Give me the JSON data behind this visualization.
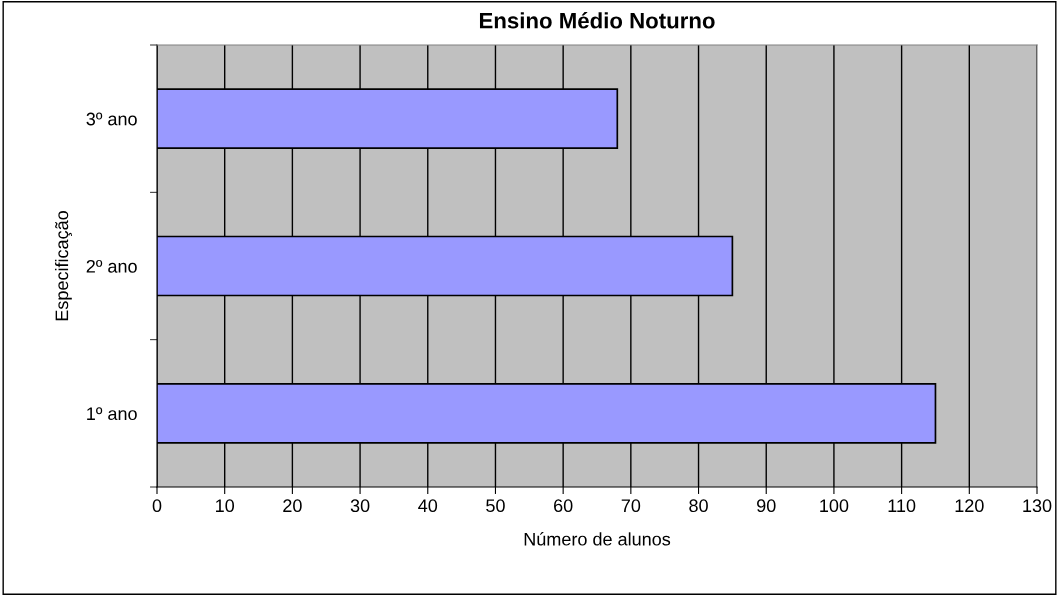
{
  "chart_data": {
    "type": "bar",
    "orientation": "horizontal",
    "title": "Ensino Médio Noturno",
    "xlabel": "Número de alunos",
    "ylabel": "Especificação",
    "categories": [
      "3º ano",
      "2º ano",
      "1º ano"
    ],
    "values": [
      68,
      85,
      115
    ],
    "color": "#9999ff",
    "xlim": [
      0,
      130
    ],
    "xticks": [
      0,
      10,
      20,
      30,
      40,
      50,
      60,
      70,
      80,
      90,
      100,
      110,
      120,
      130
    ],
    "grid": "x"
  }
}
